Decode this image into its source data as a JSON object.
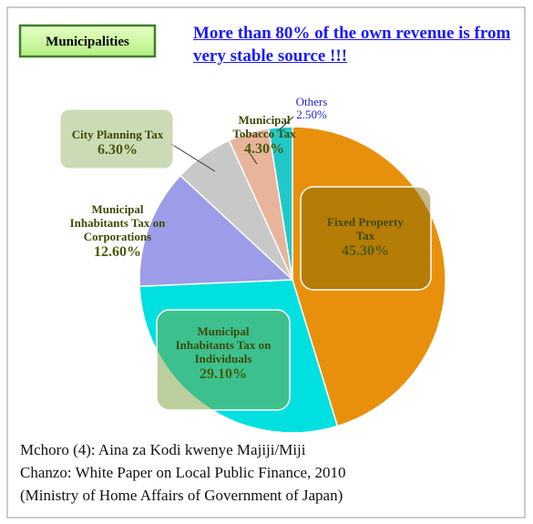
{
  "header": {
    "badge": "Municipalities",
    "headline": "More than 80% of the own revenue is from very stable source !!!"
  },
  "chart_data": {
    "type": "pie",
    "categories": [
      "Fixed Property Tax",
      "Municipal Inhabitants Tax on Individuals",
      "Municipal Inhabitants Tax on Corporations",
      "City Planning Tax",
      "Municipal Tobacco Tax",
      "Others"
    ],
    "values": [
      45.3,
      29.1,
      12.6,
      6.3,
      4.3,
      2.5
    ],
    "value_labels": [
      "45.30%",
      "29.10%",
      "12.60%",
      "6.30%",
      "4.30%",
      "2.50%"
    ],
    "colors": [
      "#e8900c",
      "#00e0e0",
      "#9c9ce8",
      "#c8c8c8",
      "#e8b49c",
      "#22c8c8"
    ]
  },
  "footer": [
    "Mchoro (4): Aina za Kodi kwenye Majiji/Miji",
    "Chanzo: White Paper on Local Public Finance, 2010",
    "(Ministry of Home Affairs of Government of Japan)"
  ]
}
